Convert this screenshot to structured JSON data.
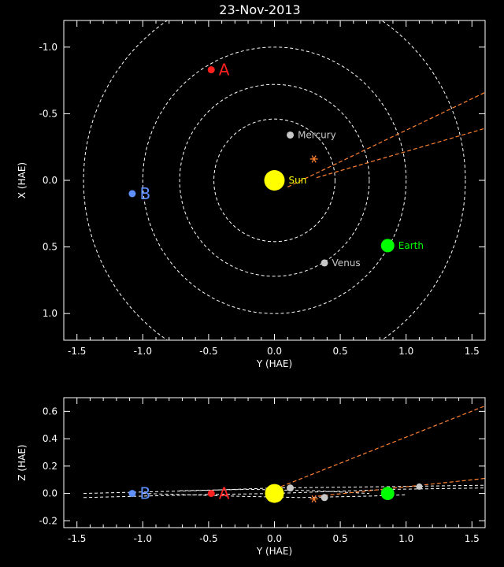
{
  "title": "23-Nov-2013",
  "colors": {
    "background": "#000000",
    "axes": "#ffffff",
    "orbit": "#ffffff",
    "sun": "#ffff00",
    "earth": "#00ff00",
    "planet": "#c8c8c8",
    "stereo_a": "#ff2020",
    "stereo_b": "#6090ff",
    "trajectory": "#ff8030"
  },
  "chart_data": [
    {
      "type": "scatter",
      "panel": "top",
      "xlabel": "Y (HAE)",
      "ylabel": "X (HAE)",
      "xlim": [
        -1.6,
        1.6
      ],
      "ylim": [
        1.2,
        -1.2
      ],
      "xticks": [
        -1.5,
        -1.0,
        -0.5,
        0.0,
        0.5,
        1.0,
        1.5
      ],
      "xtick_labels": [
        "-1.5",
        "-1.0",
        "-0.5",
        "0.0",
        "0.5",
        "1.0",
        "1.5"
      ],
      "yticks": [
        -1.0,
        -0.5,
        0.0,
        0.5,
        1.0
      ],
      "ytick_labels": [
        "-1.0",
        "-0.5",
        "0.0",
        "0.5",
        "1.0"
      ],
      "orbits_radius": [
        0.46,
        0.72,
        1.0,
        1.45
      ],
      "bodies": [
        {
          "name": "Sun",
          "label": "Sun",
          "x": 0.0,
          "y": 0.0,
          "size": 13,
          "color_key": "sun",
          "label_size": 12
        },
        {
          "name": "Mercury",
          "label": "Mercury",
          "x": 0.12,
          "y": -0.34,
          "size": 4.5,
          "color_key": "planet",
          "label_size": 12
        },
        {
          "name": "Venus",
          "label": "Venus",
          "x": 0.38,
          "y": 0.62,
          "size": 4.5,
          "color_key": "planet",
          "label_size": 12
        },
        {
          "name": "Earth",
          "label": "Earth",
          "x": 0.86,
          "y": 0.49,
          "size": 8.5,
          "color_key": "earth",
          "label_size": 12
        },
        {
          "name": "A",
          "label": "A",
          "x": -0.48,
          "y": -0.83,
          "size": 4.5,
          "color_key": "stereo_a",
          "label_size": 20
        },
        {
          "name": "B",
          "label": "B",
          "x": -1.08,
          "y": 0.1,
          "size": 4.5,
          "color_key": "stereo_b",
          "label_size": 20
        }
      ],
      "trajectories": [
        [
          [
            0.1,
            0.05
          ],
          [
            1.6,
            -0.66
          ]
        ],
        [
          [
            0.32,
            -0.02
          ],
          [
            1.6,
            -0.39
          ]
        ]
      ],
      "markers": [
        {
          "name": "cme-marker",
          "x": 0.3,
          "y": -0.16
        }
      ]
    },
    {
      "type": "scatter",
      "panel": "bottom",
      "xlabel": "Y (HAE)",
      "ylabel": "Z (HAE)",
      "xlim": [
        -1.6,
        1.6
      ],
      "ylim": [
        -0.25,
        0.7
      ],
      "xticks": [
        -1.5,
        -1.0,
        -0.5,
        0.0,
        0.5,
        1.0,
        1.5
      ],
      "xtick_labels": [
        "-1.5",
        "-1.0",
        "-0.5",
        "0.0",
        "0.5",
        "1.0",
        "1.5"
      ],
      "yticks": [
        -0.2,
        0.0,
        0.2,
        0.4,
        0.6
      ],
      "ytick_labels": [
        "-0.2",
        "0.0",
        "0.2",
        "0.4",
        "0.6"
      ],
      "bodies": [
        {
          "name": "Sun",
          "label": "",
          "x": 0.0,
          "y": 0.0,
          "size": 12,
          "color_key": "sun",
          "label_size": 12
        },
        {
          "name": "Mercury",
          "label": "",
          "x": 0.12,
          "y": 0.04,
          "size": 4.5,
          "color_key": "planet",
          "label_size": 12
        },
        {
          "name": "Venus",
          "label": "",
          "x": 0.38,
          "y": -0.03,
          "size": 4.5,
          "color_key": "planet",
          "label_size": 12
        },
        {
          "name": "Mercury-2",
          "label": "",
          "x": 1.1,
          "y": 0.05,
          "size": 4,
          "color_key": "planet",
          "label_size": 12
        },
        {
          "name": "Earth",
          "label": "",
          "x": 0.86,
          "y": 0.0,
          "size": 8.5,
          "color_key": "earth",
          "label_size": 12
        },
        {
          "name": "A",
          "label": "A",
          "x": -0.48,
          "y": 0.0,
          "size": 4.5,
          "color_key": "stereo_a",
          "label_size": 20
        },
        {
          "name": "B",
          "label": "B",
          "x": -1.08,
          "y": 0.0,
          "size": 4.5,
          "color_key": "stereo_b",
          "label_size": 20
        }
      ],
      "trajectories": [
        [
          [
            0.05,
            0.05
          ],
          [
            1.6,
            0.64
          ]
        ],
        [
          [
            0.33,
            -0.02
          ],
          [
            1.6,
            0.11
          ]
        ]
      ],
      "orbit_lines": [
        [
          [
            -1.45,
            -0.03
          ],
          [
            -0.6,
            -0.01
          ],
          [
            0.0,
            0.0
          ],
          [
            0.9,
            0.03
          ],
          [
            1.6,
            0.04
          ]
        ],
        [
          [
            -1.45,
            0.0
          ],
          [
            -0.6,
            0.02
          ],
          [
            0.0,
            0.04
          ],
          [
            0.9,
            0.05
          ],
          [
            1.6,
            0.06
          ]
        ],
        [
          [
            -1.0,
            0.0
          ],
          [
            -0.3,
            -0.02
          ],
          [
            0.2,
            -0.03
          ],
          [
            0.7,
            -0.02
          ],
          [
            1.0,
            -0.01
          ]
        ],
        [
          [
            -0.72,
            0.02
          ],
          [
            -0.2,
            0.03
          ],
          [
            0.3,
            0.02
          ],
          [
            0.72,
            0.0
          ]
        ]
      ],
      "markers": [
        {
          "name": "cme-marker",
          "x": 0.3,
          "y": -0.04
        }
      ]
    }
  ]
}
